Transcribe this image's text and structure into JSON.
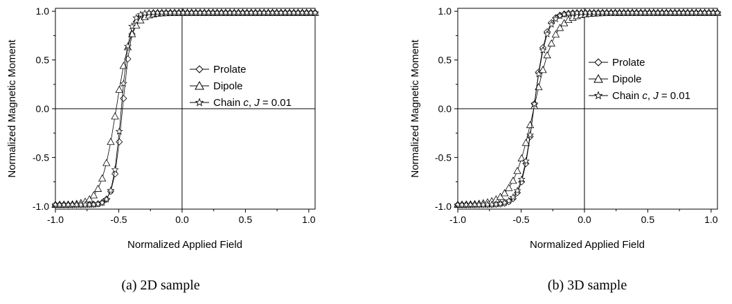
{
  "chart_data": [
    {
      "type": "scatter",
      "caption": "(a) 2D sample",
      "xlabel": "Normalized Applied Field",
      "ylabel": "Normalized Magnetic Moment",
      "xlim": [
        -1.0,
        1.05
      ],
      "ylim": [
        -1.03,
        1.03
      ],
      "xticks": [
        "-1.0",
        "-0.5",
        "0.0",
        "0.5",
        "1.0"
      ],
      "yticks": [
        "-1.0",
        "-0.5",
        "0.0",
        "0.5",
        "1.0"
      ],
      "xtick_values": [
        -1.0,
        -0.5,
        0.0,
        0.5,
        1.0
      ],
      "ytick_values": [
        -1.0,
        -0.5,
        0.0,
        0.5,
        1.0
      ],
      "legend_position": "right",
      "zero_lines": true,
      "series": [
        {
          "name": "Prolate",
          "marker": "diamond",
          "center": -0.47,
          "width": 0.06
        },
        {
          "name": "Dipole",
          "marker": "triangle",
          "center": -0.52,
          "width": 0.1
        },
        {
          "name": "Chain c, J = 0.01",
          "marker": "star",
          "center": -0.48,
          "width": 0.055
        }
      ],
      "legend": [
        {
          "prefix": "Chain ",
          "italic": "c",
          "mid": ", ",
          "italic2": "J",
          "suffix": " = 0.01"
        }
      ]
    },
    {
      "type": "scatter",
      "caption": "(b) 3D sample",
      "xlabel": "Normalized Applied Field",
      "ylabel": "Normalized Magnetic Moment",
      "xlim": [
        -1.0,
        1.05
      ],
      "ylim": [
        -1.03,
        1.03
      ],
      "xticks": [
        "-1.0",
        "-0.5",
        "0.0",
        "0.5",
        "1.0"
      ],
      "yticks": [
        "-1.0",
        "-0.5",
        "0.0",
        "0.5",
        "1.0"
      ],
      "xtick_values": [
        -1.0,
        -0.5,
        0.0,
        0.5,
        1.0
      ],
      "ytick_values": [
        -1.0,
        -0.5,
        0.0,
        0.5,
        1.0
      ],
      "legend_position": "right",
      "zero_lines": true,
      "series": [
        {
          "name": "Prolate",
          "marker": "diamond",
          "center": -0.4,
          "width": 0.08
        },
        {
          "name": "Dipole",
          "marker": "triangle",
          "center": -0.4,
          "width": 0.14
        },
        {
          "name": "Chain c, J = 0.01",
          "marker": "star",
          "center": -0.4,
          "width": 0.085
        }
      ]
    }
  ],
  "legend_text": {
    "prolate": "Prolate",
    "dipole": "Dipole",
    "chain_prefix": "Chain ",
    "chain_c": "c",
    "chain_sep": ", ",
    "chain_J": "J",
    "chain_suffix": " = 0.01"
  }
}
